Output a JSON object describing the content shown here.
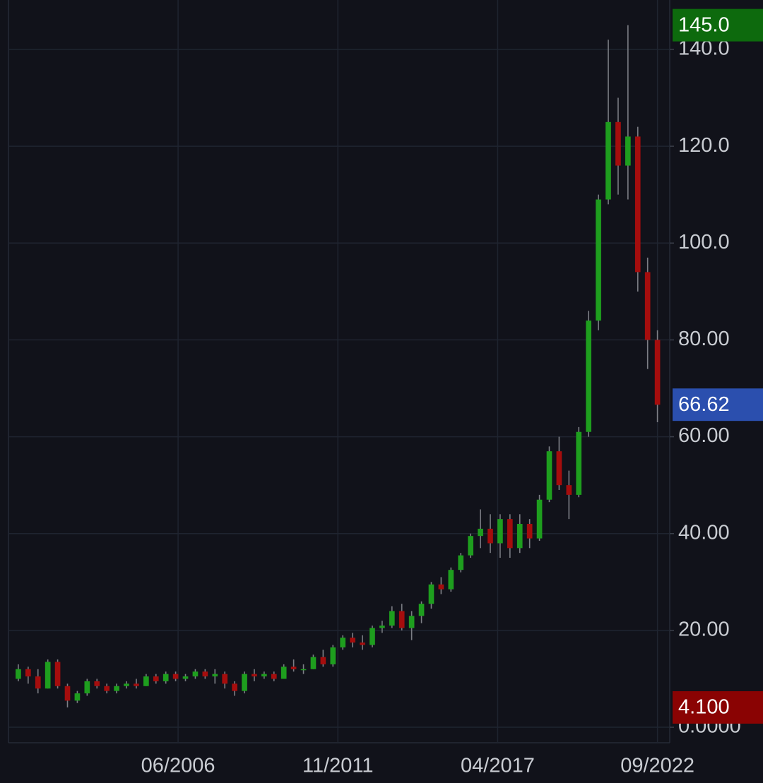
{
  "chart_data": {
    "type": "candlestick",
    "x": [
      "01/2001",
      "05/2001",
      "09/2001",
      "01/2002",
      "05/2002",
      "09/2002",
      "01/2003",
      "05/2003",
      "09/2003",
      "01/2004",
      "05/2004",
      "09/2004",
      "01/2005",
      "05/2005",
      "09/2005",
      "01/2006",
      "05/2006",
      "09/2006",
      "01/2007",
      "05/2007",
      "09/2007",
      "01/2008",
      "05/2008",
      "09/2008",
      "01/2009",
      "05/2009",
      "09/2009",
      "01/2010",
      "05/2010",
      "09/2010",
      "01/2011",
      "05/2011",
      "09/2011",
      "01/2012",
      "05/2012",
      "09/2012",
      "01/2013",
      "05/2013",
      "09/2013",
      "01/2014",
      "05/2014",
      "09/2014",
      "01/2015",
      "05/2015",
      "09/2015",
      "01/2016",
      "05/2016",
      "09/2016",
      "01/2017",
      "05/2017",
      "09/2017",
      "01/2018",
      "05/2018",
      "09/2018",
      "01/2019",
      "05/2019",
      "09/2019",
      "01/2020",
      "05/2020",
      "09/2020",
      "01/2021",
      "05/2021",
      "09/2021",
      "01/2022",
      "05/2022",
      "09/2022"
    ],
    "open": [
      10,
      12,
      10.5,
      8,
      13.5,
      8.5,
      5.5,
      7,
      9.5,
      8.5,
      7.5,
      8.5,
      9,
      8.5,
      10.5,
      9.5,
      11,
      10,
      10.5,
      11.5,
      10.5,
      11,
      9,
      7.5,
      11,
      10.5,
      11,
      10,
      12.5,
      12,
      12,
      14.5,
      13,
      16.5,
      18.5,
      17.5,
      17,
      20.5,
      21,
      24,
      20.5,
      23,
      25.5,
      29.5,
      28.5,
      32.5,
      35.5,
      39.5,
      41,
      38,
      43,
      37,
      42,
      39,
      47,
      57,
      50,
      48,
      61,
      84,
      109,
      125,
      116,
      122,
      94,
      80
    ],
    "high": [
      13,
      12.5,
      12,
      14,
      14,
      9,
      7.5,
      10,
      10,
      9,
      9,
      9.5,
      10,
      11,
      11,
      11.5,
      11.5,
      11,
      12,
      12,
      12,
      11.5,
      9.5,
      11.5,
      12,
      11.5,
      11.5,
      13,
      14,
      13,
      15,
      16,
      17,
      19,
      19.5,
      19,
      21,
      22,
      25,
      25.5,
      24,
      26,
      30,
      31,
      33,
      36,
      40,
      45,
      44,
      44,
      44,
      44,
      43,
      48,
      58,
      60,
      53,
      62,
      86,
      110,
      142,
      130,
      145,
      124,
      97,
      82
    ],
    "low": [
      9.5,
      9,
      7,
      8,
      8,
      4.1,
      5,
      6.5,
      8,
      7,
      7,
      8,
      8,
      8.5,
      9,
      9,
      9.5,
      9.5,
      10,
      10,
      9,
      8,
      6.5,
      7,
      9.5,
      10,
      9.5,
      10,
      11.5,
      11,
      12,
      12.5,
      12.5,
      16,
      16.5,
      16,
      16.5,
      19.5,
      20.5,
      20,
      18,
      21.5,
      24.5,
      27.5,
      28,
      32,
      35,
      37,
      36,
      35,
      35,
      36,
      37,
      38.5,
      46.5,
      49,
      43,
      47.5,
      60,
      82,
      108,
      110,
      109,
      90,
      74,
      63
    ],
    "close": [
      12,
      10.5,
      8,
      13.5,
      8.5,
      5.5,
      7,
      9.5,
      8.5,
      7.5,
      8.5,
      9,
      8.5,
      10.5,
      9.5,
      11,
      10,
      10.5,
      11.5,
      10.5,
      11,
      9,
      7.5,
      11,
      10.5,
      11,
      10,
      12.5,
      12,
      12,
      14.5,
      13,
      16.5,
      18.5,
      17.5,
      17,
      20.5,
      21,
      24,
      20.5,
      23,
      25.5,
      29.5,
      28.5,
      32.5,
      35.5,
      39.5,
      41,
      38,
      43,
      37,
      42,
      39,
      47,
      57,
      50,
      48,
      61,
      84,
      109,
      125,
      116,
      122,
      94,
      80,
      66.62
    ],
    "up_color": "#1e9e1e",
    "down_color": "#a50d0d",
    "wick_color": "#7d7f86",
    "xlim": [
      "09/2000",
      "02/2023"
    ],
    "xticks": [
      "06/2006",
      "11/2011",
      "04/2017",
      "09/2022"
    ],
    "ylim": [
      -3.2,
      150.2
    ],
    "yticks": [
      {
        "value": 0,
        "label": "0.0000"
      },
      {
        "value": 20,
        "label": "20.00"
      },
      {
        "value": 40,
        "label": "40.00"
      },
      {
        "value": 60,
        "label": "60.00"
      },
      {
        "value": 80,
        "label": "80.00"
      },
      {
        "value": 100,
        "label": "100.0"
      },
      {
        "value": 120,
        "label": "120.0"
      },
      {
        "value": 140,
        "label": "140.0"
      }
    ],
    "grid": true,
    "price_labels": [
      {
        "value": 145,
        "label": "145.0",
        "color": "#0d6a0d"
      },
      {
        "value": 66.62,
        "label": "66.62",
        "color": "#2b4fae"
      },
      {
        "value": 4.1,
        "label": "4.100",
        "color": "#8a0303"
      }
    ]
  }
}
